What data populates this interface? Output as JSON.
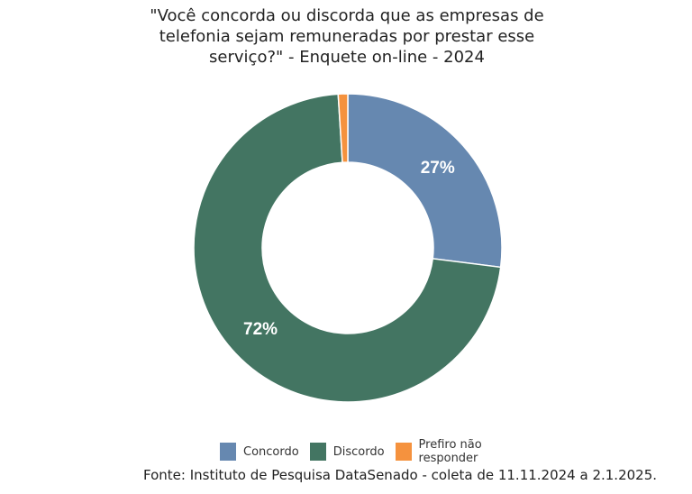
{
  "chart_data": {
    "type": "donut",
    "title": "\"Você concorda ou discorda que as empresas de telefonia sejam remuneradas por prestar esse serviço?\" - Enquete on-line - 2024",
    "categories": [
      "Concordo",
      "Discordo",
      "Prefiro não responder"
    ],
    "values": [
      27,
      72,
      1
    ],
    "value_labels": [
      "27%",
      "72%",
      null
    ],
    "colors": [
      "#6688b0",
      "#437562",
      "#f5923e"
    ],
    "source": "Fonte: Instituto de Pesquisa DataSenado - coleta de 11.11.2024 a 2.1.2025."
  }
}
